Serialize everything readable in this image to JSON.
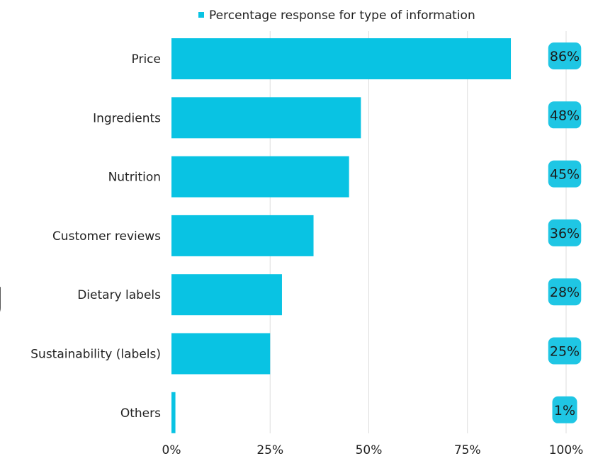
{
  "chart_data": {
    "type": "bar",
    "orientation": "horizontal",
    "categories": [
      "Price",
      "Ingredients",
      "Nutrition",
      "Customer reviews",
      "Dietary labels",
      "Sustainability (labels)",
      "Others"
    ],
    "series": [
      {
        "name": "Percentage response for type of information",
        "values": [
          86,
          48,
          45,
          36,
          28,
          25,
          1
        ],
        "data_labels": [
          "86%",
          "48%",
          "45%",
          "36%",
          "28%",
          "25%",
          "1%"
        ]
      }
    ],
    "x_ticks": [
      "0%",
      "25%",
      "50%",
      "75%",
      "100%"
    ],
    "xlim": [
      0,
      100
    ],
    "legend_position": "top",
    "grid": "vertical",
    "bar_color": "#09c3e3",
    "label_box_color": "#1fc6e4"
  },
  "edge_text": "J"
}
